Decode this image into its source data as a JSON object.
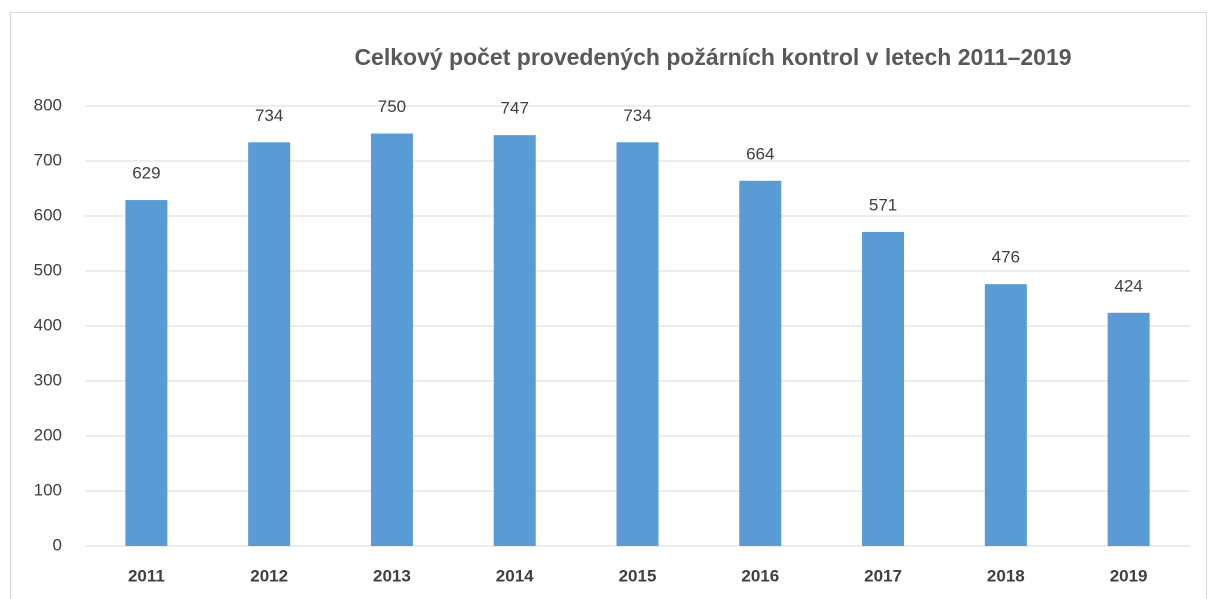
{
  "chart_data": {
    "type": "bar",
    "title": "Celkový počet provedených požárních kontrol v letech 2011–2019",
    "categories": [
      "2011",
      "2012",
      "2013",
      "2014",
      "2015",
      "2016",
      "2017",
      "2018",
      "2019"
    ],
    "values": [
      629,
      734,
      750,
      747,
      734,
      664,
      571,
      476,
      424
    ],
    "color": "#5b9bd5",
    "ylim": [
      0,
      800
    ],
    "yticks": [
      0,
      100,
      200,
      300,
      400,
      500,
      600,
      700,
      800
    ],
    "grid": true
  }
}
